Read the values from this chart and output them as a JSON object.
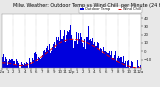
{
  "bg_color": "#e8e8e8",
  "plot_bg_color": "#ffffff",
  "bar_color": "#0000dd",
  "line_color": "#dd0000",
  "legend_bar_label": "Outdoor Temp",
  "legend_line_label": "Wind Chill",
  "n_points": 1440,
  "ylim_min": -20,
  "ylim_max": 45,
  "yticks": [
    -10,
    0,
    10,
    20,
    30,
    40
  ],
  "xlabel_fontsize": 2.8,
  "ylabel_fontsize": 2.8,
  "title_fontsize": 3.5,
  "title": "Milw. Weather: Outdoor Temp vs Wind Chill  per Minute (24 Hours)"
}
